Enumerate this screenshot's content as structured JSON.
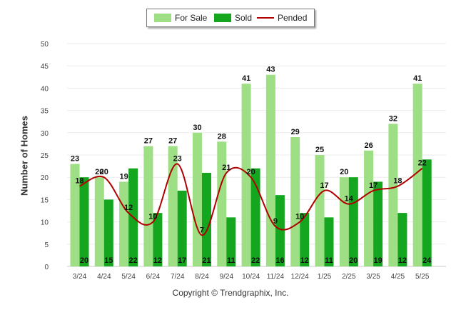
{
  "chart_data": {
    "type": "bar",
    "categories": [
      "3/24",
      "4/24",
      "5/24",
      "6/24",
      "7/24",
      "8/24",
      "9/24",
      "10/24",
      "11/24",
      "12/24",
      "1/25",
      "2/25",
      "3/25",
      "4/25",
      "5/25"
    ],
    "series": [
      {
        "name": "For Sale",
        "kind": "bar",
        "color": "#9ede84",
        "values": [
          23,
          20,
          19,
          27,
          27,
          30,
          28,
          41,
          43,
          29,
          25,
          20,
          26,
          32,
          41
        ]
      },
      {
        "name": "Sold",
        "kind": "bar",
        "color": "#14a61e",
        "values": [
          20,
          15,
          22,
          12,
          17,
          21,
          11,
          22,
          16,
          12,
          11,
          20,
          19,
          12,
          24
        ]
      },
      {
        "name": "Pended",
        "kind": "line",
        "color": "#b00000",
        "values": [
          18,
          20,
          12,
          10,
          23,
          7,
          21,
          20,
          9,
          10,
          17,
          14,
          17,
          18,
          22
        ]
      }
    ],
    "xlabel": "",
    "ylabel": "Number of Homes",
    "ylim": [
      0,
      50
    ],
    "yticks": [
      0,
      5,
      10,
      15,
      20,
      25,
      30,
      35,
      40,
      45,
      50
    ],
    "grid": true,
    "legend_position": "top-center"
  },
  "copyright": "Copyright © Trendgraphix, Inc."
}
